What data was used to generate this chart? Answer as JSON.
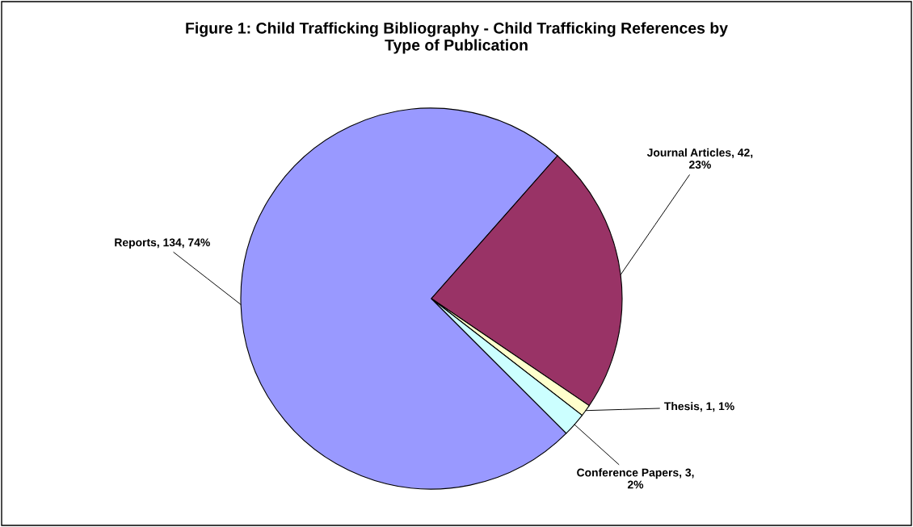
{
  "chart_data": {
    "type": "pie",
    "title": "Figure 1: Child Trafficking Bibliography - Child Trafficking References by\nType of Publication",
    "categories": [
      "Reports",
      "Journal Articles",
      "Thesis",
      "Conference Papers"
    ],
    "values": [
      74,
      23,
      1,
      2
    ],
    "colors": [
      "#9999ff",
      "#993366",
      "#ffffcc",
      "#ccffff"
    ],
    "value_labels": [
      "134, 74%",
      "42,\n23%",
      "1, 1%",
      "3,\n2%"
    ],
    "legend": false
  }
}
